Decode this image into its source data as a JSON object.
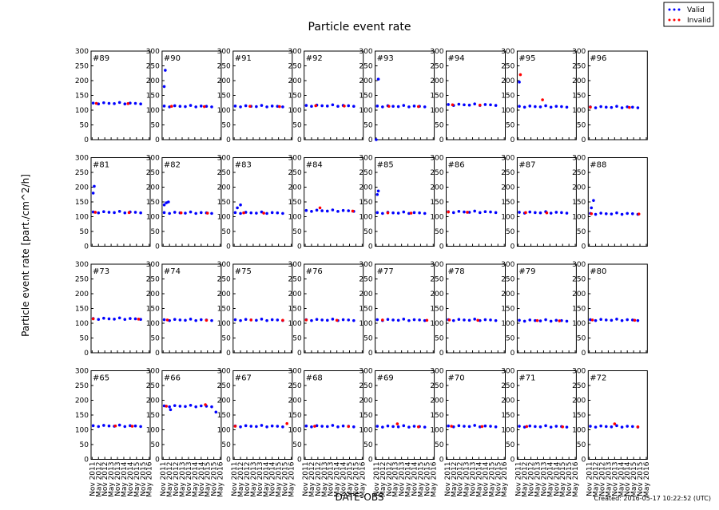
{
  "chart_data": {
    "type": "scatter",
    "title": "Particle event rate",
    "xlabel": "DATE-OBS",
    "ylabel": "Particle event rate [part./cm^2/h]",
    "note": "Created: 2016-05-17 10:22:52 (UTC)",
    "series": [
      {
        "name": "Valid",
        "color": "#0000ff"
      },
      {
        "name": "Invalid",
        "color": "#ff0000"
      }
    ],
    "legend": "upper right",
    "ylim": [
      0,
      300
    ],
    "yticks": [
      0,
      50,
      100,
      150,
      200,
      250,
      300
    ],
    "xlim": [
      "2011-10",
      "2016-06"
    ],
    "xticks": [
      {
        "value": "2011-11",
        "label": "Nov 2011"
      },
      {
        "value": "2012-05",
        "label": "May 2012"
      },
      {
        "value": "2012-11",
        "label": "Nov 2012"
      },
      {
        "value": "2013-05",
        "label": "May 2013"
      },
      {
        "value": "2013-11",
        "label": "Nov 2013"
      },
      {
        "value": "2014-05",
        "label": "May 2014"
      },
      {
        "value": "2014-11",
        "label": "Nov 2014"
      },
      {
        "value": "2015-05",
        "label": "May 2015"
      },
      {
        "value": "2015-11",
        "label": "Nov 2015"
      },
      {
        "value": "2016-05",
        "label": "May 2016"
      }
    ],
    "x": [
      "2011-12",
      "2012-05",
      "2012-10",
      "2013-03",
      "2013-08",
      "2014-01",
      "2014-06",
      "2014-11",
      "2015-04",
      "2015-09"
    ],
    "panels": [
      {
        "label": "#89",
        "valid": [
          124,
          121,
          125,
          123,
          122,
          126,
          121,
          124,
          123,
          121
        ],
        "outliers": {
          "x": [],
          "values": []
        },
        "invalid": {
          "x": [
            "2012-03",
            "2014-09"
          ],
          "values": [
            123,
            122
          ]
        }
      },
      {
        "label": "#90",
        "valid": [
          114,
          111,
          115,
          113,
          112,
          116,
          111,
          114,
          113,
          111
        ],
        "outliers": {
          "x": [
            "2011-12",
            "2012-01"
          ],
          "values": [
            180,
            235
          ]
        },
        "invalid": {
          "x": [
            "2012-07",
            "2015-02"
          ],
          "values": [
            113,
            112
          ]
        }
      },
      {
        "label": "#91",
        "valid": [
          114,
          111,
          115,
          113,
          112,
          116,
          111,
          114,
          113,
          111
        ],
        "outliers": {
          "x": [],
          "values": []
        },
        "invalid": {
          "x": [
            "2013-02",
            "2015-06"
          ],
          "values": [
            113,
            112
          ]
        }
      },
      {
        "label": "#92",
        "valid": [
          116,
          113,
          117,
          115,
          114,
          118,
          113,
          116,
          115,
          113
        ],
        "outliers": {
          "x": [],
          "values": []
        },
        "invalid": {
          "x": [
            "2012-09",
            "2014-12"
          ],
          "values": [
            115,
            114
          ]
        }
      },
      {
        "label": "#93",
        "valid": [
          114,
          111,
          115,
          113,
          112,
          116,
          111,
          114,
          113,
          111
        ],
        "outliers": {
          "x": [
            "2011-11",
            "2012-01"
          ],
          "values": [
            0,
            205
          ]
        },
        "invalid": {
          "x": [
            "2012-11",
            "2015-03"
          ],
          "values": [
            113,
            112
          ]
        }
      },
      {
        "label": "#94",
        "valid": [
          119,
          116,
          120,
          118,
          117,
          121,
          116,
          119,
          118,
          116
        ],
        "outliers": {
          "x": [],
          "values": []
        },
        "invalid": {
          "x": [
            "2012-04",
            "2014-06"
          ],
          "values": [
            118,
            117
          ]
        }
      },
      {
        "label": "#95",
        "valid": [
          113,
          110,
          114,
          112,
          111,
          115,
          110,
          113,
          112,
          110
        ],
        "outliers": {
          "x": [
            "2011-12"
          ],
          "values": [
            195
          ]
        },
        "invalid": {
          "x": [
            "2012-01",
            "2013-10"
          ],
          "values": [
            220,
            135
          ]
        }
      },
      {
        "label": "#96",
        "valid": [
          111,
          108,
          112,
          110,
          109,
          113,
          108,
          111,
          110,
          108
        ],
        "outliers": {
          "x": [],
          "values": []
        },
        "invalid": {
          "x": [
            "2011-12",
            "2015-01"
          ],
          "values": [
            110,
            109
          ]
        }
      },
      {
        "label": "#81",
        "valid": [
          116,
          113,
          117,
          115,
          114,
          118,
          113,
          116,
          115,
          113
        ],
        "outliers": {
          "x": [
            "2011-12",
            "2012-01"
          ],
          "values": [
            180,
            203
          ]
        },
        "invalid": {
          "x": [
            "2012-02",
            "2014-10"
          ],
          "values": [
            115,
            114
          ]
        }
      },
      {
        "label": "#82",
        "valid": [
          114,
          111,
          115,
          113,
          112,
          116,
          111,
          114,
          113,
          111
        ],
        "outliers": {
          "x": [
            "2011-12",
            "2012-02",
            "2012-04"
          ],
          "values": [
            140,
            147,
            150
          ]
        },
        "invalid": {
          "x": [
            "2013-04",
            "2015-05"
          ],
          "values": [
            113,
            112
          ]
        }
      },
      {
        "label": "#83",
        "valid": [
          114,
          111,
          115,
          113,
          112,
          116,
          111,
          114,
          113,
          111
        ],
        "outliers": {
          "x": [
            "2012-02",
            "2012-05"
          ],
          "values": [
            130,
            140
          ]
        },
        "invalid": {
          "x": [
            "2012-08",
            "2014-03"
          ],
          "values": [
            113,
            112
          ]
        }
      },
      {
        "label": "#84",
        "valid": [
          121,
          118,
          122,
          120,
          119,
          123,
          118,
          121,
          120,
          118
        ],
        "outliers": {
          "x": [],
          "values": []
        },
        "invalid": {
          "x": [
            "2013-01",
            "2015-08"
          ],
          "values": [
            130,
            119
          ]
        }
      },
      {
        "label": "#85",
        "valid": [
          114,
          111,
          115,
          113,
          112,
          116,
          111,
          114,
          113,
          111
        ],
        "outliers": {
          "x": [
            "2011-12",
            "2012-01"
          ],
          "values": [
            175,
            187
          ]
        },
        "invalid": {
          "x": [
            "2012-10",
            "2014-08"
          ],
          "values": [
            113,
            112
          ]
        }
      },
      {
        "label": "#86",
        "valid": [
          117,
          114,
          118,
          116,
          115,
          119,
          114,
          117,
          116,
          114
        ],
        "outliers": {
          "x": [],
          "values": []
        },
        "invalid": {
          "x": [
            "2011-12",
            "2013-06"
          ],
          "values": [
            116,
            115
          ]
        }
      },
      {
        "label": "#87",
        "valid": [
          115,
          112,
          116,
          114,
          113,
          117,
          112,
          115,
          114,
          112
        ],
        "outliers": {
          "x": [],
          "values": []
        },
        "invalid": {
          "x": [
            "2012-06",
            "2014-02"
          ],
          "values": [
            114,
            113
          ]
        }
      },
      {
        "label": "#88",
        "valid": [
          111,
          108,
          112,
          110,
          109,
          113,
          108,
          111,
          110,
          108
        ],
        "outliers": {
          "x": [
            "2012-01",
            "2012-03"
          ],
          "values": [
            130,
            155
          ]
        },
        "invalid": {
          "x": [
            "2012-01",
            "2015-10"
          ],
          "values": [
            110,
            109
          ]
        }
      },
      {
        "label": "#73",
        "valid": [
          116,
          113,
          117,
          115,
          114,
          118,
          113,
          116,
          115,
          113
        ],
        "outliers": {
          "x": [],
          "values": []
        },
        "invalid": {
          "x": [
            "2011-12",
            "2015-07"
          ],
          "values": [
            115,
            114
          ]
        }
      },
      {
        "label": "#74",
        "valid": [
          112,
          109,
          113,
          111,
          110,
          114,
          109,
          112,
          111,
          109
        ],
        "outliers": {
          "x": [],
          "values": []
        },
        "invalid": {
          "x": [
            "2012-03",
            "2015-04"
          ],
          "values": [
            111,
            110
          ]
        }
      },
      {
        "label": "#75",
        "valid": [
          112,
          109,
          113,
          111,
          110,
          114,
          109,
          112,
          111,
          109
        ],
        "outliers": {
          "x": [],
          "values": []
        },
        "invalid": {
          "x": [
            "2013-03",
            "2015-09"
          ],
          "values": [
            111,
            110
          ]
        }
      },
      {
        "label": "#76",
        "valid": [
          112,
          109,
          113,
          111,
          110,
          114,
          109,
          112,
          111,
          109
        ],
        "outliers": {
          "x": [],
          "values": []
        },
        "invalid": {
          "x": [
            "2011-12",
            "2014-05"
          ],
          "values": [
            111,
            110
          ]
        }
      },
      {
        "label": "#77",
        "valid": [
          112,
          109,
          113,
          111,
          110,
          114,
          109,
          112,
          111,
          109
        ],
        "outliers": {
          "x": [],
          "values": []
        },
        "invalid": {
          "x": [
            "2012-05",
            "2015-11"
          ],
          "values": [
            111,
            110
          ]
        }
      },
      {
        "label": "#78",
        "valid": [
          112,
          109,
          113,
          111,
          110,
          114,
          109,
          112,
          111,
          109
        ],
        "outliers": {
          "x": [],
          "values": []
        },
        "invalid": {
          "x": [
            "2012-01",
            "2014-04"
          ],
          "values": [
            111,
            110
          ]
        }
      },
      {
        "label": "#79",
        "valid": [
          110,
          107,
          111,
          109,
          108,
          112,
          107,
          110,
          109,
          107
        ],
        "outliers": {
          "x": [],
          "values": []
        },
        "invalid": {
          "x": [
            "2013-05",
            "2015-02"
          ],
          "values": [
            109,
            108
          ]
        }
      },
      {
        "label": "#80",
        "valid": [
          112,
          109,
          113,
          111,
          110,
          114,
          109,
          112,
          111,
          109
        ],
        "outliers": {
          "x": [],
          "values": []
        },
        "invalid": {
          "x": [
            "2012-02",
            "2015-06"
          ],
          "values": [
            111,
            110
          ]
        }
      },
      {
        "label": "#65",
        "valid": [
          114,
          111,
          115,
          113,
          112,
          116,
          111,
          114,
          113,
          111
        ],
        "outliers": {
          "x": [],
          "values": []
        },
        "invalid": {
          "x": [
            "2013-09",
            "2015-01"
          ],
          "values": [
            113,
            112
          ]
        }
      },
      {
        "label": "#66",
        "valid": [
          181,
          178,
          182,
          180,
          179,
          183,
          178,
          181,
          180,
          178
        ],
        "outliers": {
          "x": [
            "2012-06",
            "2016-01"
          ],
          "values": [
            168,
            160
          ]
        },
        "invalid": {
          "x": [
            "2012-02",
            "2015-03"
          ],
          "values": [
            180,
            185
          ]
        }
      },
      {
        "label": "#67",
        "valid": [
          113,
          110,
          114,
          112,
          111,
          115,
          110,
          113,
          112,
          110
        ],
        "outliers": {
          "x": [],
          "values": []
        },
        "invalid": {
          "x": [
            "2011-12",
            "2016-01"
          ],
          "values": [
            112,
            121
          ]
        }
      },
      {
        "label": "#68",
        "valid": [
          113,
          110,
          114,
          112,
          111,
          115,
          110,
          113,
          112,
          110
        ],
        "outliers": {
          "x": [],
          "values": []
        },
        "invalid": {
          "x": [
            "2012-08",
            "2015-04"
          ],
          "values": [
            112,
            111
          ]
        }
      },
      {
        "label": "#69",
        "valid": [
          112,
          109,
          113,
          111,
          110,
          114,
          109,
          112,
          111,
          109
        ],
        "outliers": {
          "x": [],
          "values": []
        },
        "invalid": {
          "x": [
            "2013-07",
            "2015-03"
          ],
          "values": [
            120,
            110
          ]
        }
      },
      {
        "label": "#70",
        "valid": [
          113,
          110,
          114,
          112,
          111,
          115,
          110,
          113,
          112,
          110
        ],
        "outliers": {
          "x": [],
          "values": []
        },
        "invalid": {
          "x": [
            "2012-03",
            "2014-08"
          ],
          "values": [
            112,
            111
          ]
        }
      },
      {
        "label": "#71",
        "valid": [
          112,
          109,
          113,
          111,
          110,
          114,
          109,
          112,
          111,
          109
        ],
        "outliers": {
          "x": [],
          "values": []
        },
        "invalid": {
          "x": [
            "2012-07",
            "2015-05"
          ],
          "values": [
            111,
            110
          ]
        }
      },
      {
        "label": "#72",
        "valid": [
          112,
          109,
          113,
          111,
          110,
          114,
          109,
          112,
          111,
          109
        ],
        "outliers": {
          "x": [],
          "values": []
        },
        "invalid": {
          "x": [
            "2013-11",
            "2015-09"
          ],
          "values": [
            120,
            110
          ]
        }
      }
    ]
  }
}
